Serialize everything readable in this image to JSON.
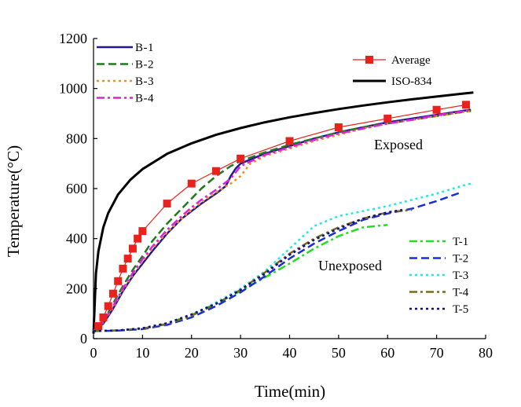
{
  "chart_data": {
    "type": "line",
    "title": "",
    "xlabel": "Time(min)",
    "ylabel": "Temperature(°C)",
    "xlim": [
      0,
      80
    ],
    "ylim": [
      0,
      1200
    ],
    "xticks": [
      "0",
      "10",
      "20",
      "30",
      "40",
      "50",
      "60",
      "70",
      "80"
    ],
    "yticks": [
      "0",
      "200",
      "400",
      "600",
      "800",
      "1000",
      "1200"
    ],
    "annotations": {
      "exposed": "Exposed",
      "unexposed": "Unexposed"
    },
    "legend_top_left": [
      "B-1",
      "B-2",
      "B-3",
      "B-4"
    ],
    "legend_top_right": [
      "Average",
      "ISO-834"
    ],
    "legend_bottom_right": [
      "T-1",
      "T-2",
      "T-3",
      "T-4",
      "T-5"
    ],
    "series": [
      {
        "name": "ISO-834",
        "color": "#000000",
        "style": "solid",
        "width": 3,
        "x": [
          0,
          0.5,
          1,
          2,
          3,
          5,
          7.5,
          10,
          15,
          20,
          25,
          30,
          35,
          40,
          45,
          50,
          55,
          60,
          65,
          70,
          75,
          77.5
        ],
        "values": [
          20,
          261,
          349,
          445,
          502,
          576,
          635,
          678,
          739,
          781,
          815,
          842,
          865,
          885,
          902,
          918,
          932,
          945,
          957,
          968,
          979,
          984
        ]
      },
      {
        "name": "B-1",
        "color": "#1f1a8f",
        "style": "solid",
        "width": 2.5,
        "x": [
          0,
          2,
          4,
          6,
          8,
          10,
          12,
          15,
          18,
          20,
          22,
          25,
          27,
          28,
          29,
          30,
          35,
          40,
          45,
          50,
          55,
          60,
          65,
          70,
          75,
          77
        ],
        "values": [
          30,
          60,
          120,
          190,
          250,
          300,
          350,
          420,
          480,
          510,
          540,
          580,
          610,
          650,
          680,
          700,
          740,
          770,
          800,
          825,
          845,
          865,
          880,
          895,
          910,
          915
        ]
      },
      {
        "name": "B-2",
        "color": "#1e7a1e",
        "style": "dash",
        "width": 2.5,
        "x": [
          0,
          2,
          4,
          6,
          8,
          10,
          12,
          15,
          18,
          20,
          22,
          25,
          28,
          30,
          35,
          40,
          45,
          50,
          55,
          60,
          65,
          70,
          75,
          77
        ],
        "values": [
          30,
          70,
          140,
          210,
          275,
          330,
          390,
          460,
          520,
          560,
          600,
          650,
          690,
          710,
          745,
          775,
          800,
          825,
          845,
          860,
          875,
          890,
          905,
          910
        ]
      },
      {
        "name": "B-3",
        "color": "#f28c1c",
        "style": "dot",
        "width": 2.5,
        "x": [
          0,
          2,
          4,
          6,
          8,
          10,
          12,
          15,
          18,
          20,
          22,
          25,
          28,
          30,
          32,
          35,
          40,
          45,
          50,
          55,
          60,
          65,
          70,
          75,
          77
        ],
        "values": [
          30,
          65,
          125,
          195,
          255,
          310,
          360,
          425,
          480,
          515,
          545,
          585,
          620,
          650,
          700,
          730,
          760,
          790,
          815,
          840,
          860,
          875,
          890,
          905,
          910
        ]
      },
      {
        "name": "B-4",
        "color": "#e020e0",
        "style": "dashdot",
        "width": 2.5,
        "x": [
          0,
          2,
          4,
          6,
          8,
          10,
          12,
          15,
          18,
          20,
          22,
          25,
          28,
          30,
          35,
          40,
          45,
          50,
          55,
          60,
          65,
          70,
          75,
          77
        ],
        "values": [
          30,
          68,
          130,
          200,
          262,
          318,
          368,
          435,
          490,
          525,
          555,
          595,
          640,
          690,
          735,
          765,
          795,
          820,
          840,
          860,
          875,
          893,
          908,
          915
        ]
      },
      {
        "name": "Average",
        "color": "#e8231e",
        "style": "solid",
        "width": 1.2,
        "marker": "square",
        "x": [
          1,
          2,
          3,
          4,
          5,
          6,
          7,
          8,
          9,
          10,
          15,
          20,
          25,
          30,
          40,
          50,
          60,
          70,
          76
        ],
        "values": [
          50,
          85,
          130,
          180,
          230,
          280,
          320,
          360,
          400,
          430,
          540,
          620,
          670,
          720,
          790,
          845,
          880,
          915,
          935
        ]
      },
      {
        "name": "T-1",
        "color": "#22dd22",
        "style": "dashdot",
        "width": 2.5,
        "x": [
          0,
          5,
          10,
          15,
          20,
          25,
          30,
          35,
          40,
          45,
          50,
          55,
          60
        ],
        "values": [
          30,
          32,
          40,
          60,
          95,
          140,
          190,
          245,
          300,
          360,
          410,
          445,
          455
        ]
      },
      {
        "name": "T-2",
        "color": "#1a2ed8",
        "style": "dash",
        "width": 2.5,
        "x": [
          0,
          5,
          10,
          15,
          20,
          25,
          30,
          35,
          40,
          45,
          50,
          55,
          60,
          65,
          70,
          75
        ],
        "values": [
          30,
          32,
          38,
          55,
          85,
          130,
          185,
          250,
          320,
          380,
          430,
          475,
          500,
          520,
          550,
          585
        ]
      },
      {
        "name": "T-3",
        "color": "#22e8e8",
        "style": "dot",
        "width": 2.5,
        "x": [
          0,
          5,
          10,
          15,
          20,
          25,
          30,
          35,
          40,
          45,
          50,
          55,
          60,
          65,
          70,
          75,
          77
        ],
        "values": [
          30,
          32,
          40,
          60,
          95,
          145,
          200,
          270,
          360,
          450,
          490,
          510,
          530,
          555,
          580,
          610,
          620
        ]
      },
      {
        "name": "T-4",
        "color": "#7a6a1c",
        "style": "dashdot",
        "width": 2.5,
        "x": [
          0,
          5,
          10,
          15,
          20,
          25,
          30,
          35,
          40,
          45,
          50,
          55,
          60,
          65
        ],
        "values": [
          30,
          33,
          40,
          58,
          92,
          138,
          195,
          265,
          340,
          400,
          445,
          480,
          505,
          515
        ]
      },
      {
        "name": "T-5",
        "color": "#10107a",
        "style": "dot",
        "width": 2.5,
        "x": [
          0,
          5,
          10,
          15,
          20,
          25,
          30,
          35,
          40,
          45,
          50,
          55,
          60,
          63
        ],
        "values": [
          30,
          33,
          42,
          62,
          97,
          140,
          195,
          260,
          335,
          395,
          440,
          480,
          505,
          515
        ]
      }
    ]
  }
}
